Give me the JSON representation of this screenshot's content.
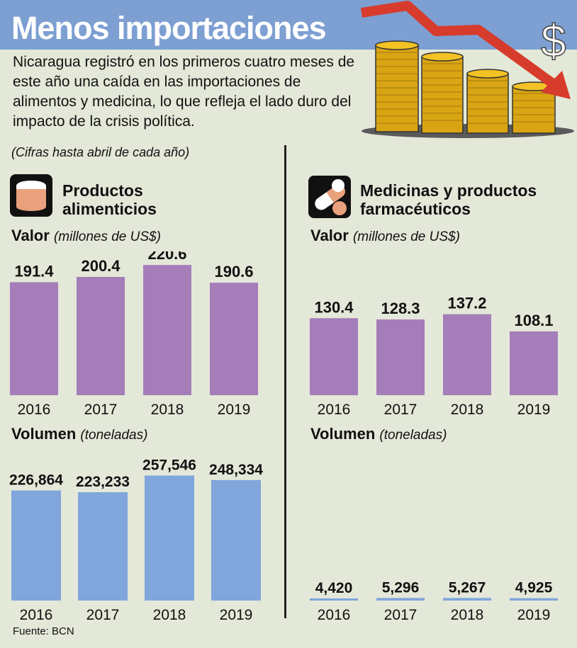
{
  "header": {
    "title": "Menos importaciones",
    "intro": "Nicaragua registró en los primeros cuatro meses de este año una caída en las importaciones de alimentos y medicina, lo que refleja el lado duro del impacto de la crisis política.",
    "note": "(Cifras hasta abril de cada año)",
    "dollar_sign": "$"
  },
  "sections": {
    "food": {
      "title_line1": "Productos",
      "title_line2": "alimenticios",
      "value_label": "Valor",
      "value_unit": "(millones de US$)",
      "volume_label": "Volumen",
      "volume_unit": "(toneladas)",
      "icon": "food-can-icon"
    },
    "medicine": {
      "title_line1": "Medicinas y productos",
      "title_line2": "farmacéuticos",
      "value_label": "Valor",
      "value_unit": "(millones de US$)",
      "volume_label": "Volumen",
      "volume_unit": "(toneladas)",
      "icon": "pills-icon"
    }
  },
  "source": "Fuente: BCN",
  "colors": {
    "purple": "#a57db9",
    "blue": "#80a6db",
    "background": "#e3e8d8",
    "header": "#7d9fd2",
    "arrow": "#d63b2c",
    "coin": "#f3c224"
  },
  "chart_data": [
    {
      "type": "bar",
      "categories": [
        "2016",
        "2017",
        "2018",
        "2019"
      ],
      "values": [
        191.4,
        200.4,
        220.6,
        190.6
      ],
      "labels": [
        "191.4",
        "200.4",
        "220.6",
        "190.6"
      ],
      "ylim": [
        0,
        240
      ],
      "color": "#a57db9"
    },
    {
      "type": "bar",
      "categories": [
        "2016",
        "2017",
        "2018",
        "2019"
      ],
      "values": [
        226864,
        223233,
        257546,
        248334
      ],
      "labels": [
        "226,864",
        "223,233",
        "257,546",
        "248,334"
      ],
      "ylim": [
        0,
        270000
      ],
      "color": "#80a6db"
    },
    {
      "type": "bar",
      "categories": [
        "2016",
        "2017",
        "2018",
        "2019"
      ],
      "values": [
        130.4,
        128.3,
        137.2,
        108.1
      ],
      "labels": [
        "130.4",
        "128.3",
        "137.2",
        "108.1"
      ],
      "ylim": [
        0,
        240
      ],
      "color": "#a57db9"
    },
    {
      "type": "bar",
      "categories": [
        "2016",
        "2017",
        "2018",
        "2019"
      ],
      "values": [
        4420,
        5296,
        5267,
        4925
      ],
      "labels": [
        "4,420",
        "5,296",
        "5,267",
        "4,925"
      ],
      "ylim": [
        0,
        270000
      ],
      "color": "#80a6db"
    }
  ]
}
